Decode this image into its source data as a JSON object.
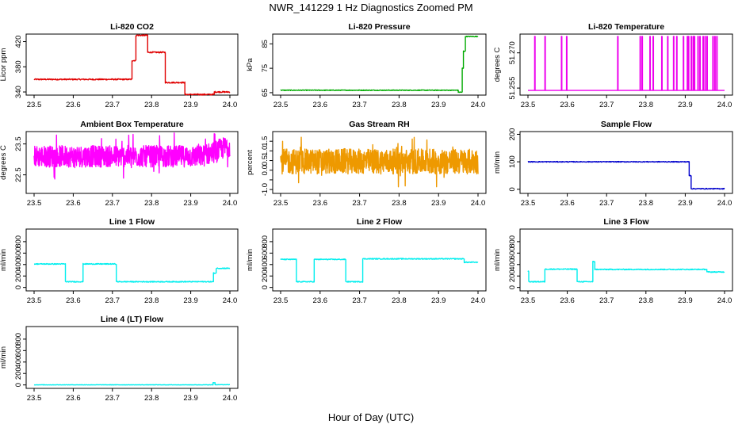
{
  "figure": {
    "title": "NWR_141229  1 Hz Diagnostics Zoomed PM",
    "xlabel": "Hour of Day (UTC)"
  },
  "chart_data": [
    {
      "id": "co2",
      "type": "line",
      "title": "Li-820 CO2",
      "ylabel": "Licor ppm",
      "color": "#e00000",
      "xlim": [
        23.5,
        24.0
      ],
      "xticks": [
        "23.5",
        "23.6",
        "23.7",
        "23.8",
        "23.9",
        "24.0"
      ],
      "ylim": [
        335,
        432
      ],
      "yticks": [
        340,
        380,
        420
      ],
      "noise": 1.0,
      "segments": [
        {
          "x0": 23.5,
          "x1": 23.75,
          "y": 360
        },
        {
          "x0": 23.75,
          "x1": 23.76,
          "y": 390
        },
        {
          "x0": 23.76,
          "x1": 23.79,
          "y": 430
        },
        {
          "x0": 23.79,
          "x1": 23.835,
          "y": 403
        },
        {
          "x0": 23.835,
          "x1": 23.885,
          "y": 355
        },
        {
          "x0": 23.885,
          "x1": 23.96,
          "y": 336
        },
        {
          "x0": 23.96,
          "x1": 23.97,
          "y": 340
        },
        {
          "x0": 23.97,
          "x1": 24.0,
          "y": 340
        }
      ]
    },
    {
      "id": "pressure",
      "type": "line",
      "title": "Li-820 Pressure",
      "ylabel": "kPa",
      "color": "#00aa00",
      "xlim": [
        23.5,
        24.0
      ],
      "xticks": [
        "23.5",
        "23.6",
        "23.7",
        "23.8",
        "23.9",
        "24.0"
      ],
      "ylim": [
        64,
        89
      ],
      "yticks": [
        65,
        75,
        85
      ],
      "noise": 0.15,
      "segments": [
        {
          "x0": 23.5,
          "x1": 23.95,
          "y": 66.0
        },
        {
          "x0": 23.95,
          "x1": 23.96,
          "y": 65.2
        },
        {
          "x0": 23.96,
          "x1": 23.963,
          "y": 75
        },
        {
          "x0": 23.963,
          "x1": 23.968,
          "y": 82
        },
        {
          "x0": 23.968,
          "x1": 24.0,
          "y": 88
        }
      ]
    },
    {
      "id": "temperature",
      "type": "line",
      "title": "Li-820 Temperature",
      "ylabel": "degrees C",
      "color": "#ee00ee",
      "xlim": [
        23.5,
        24.0
      ],
      "xticks": [
        "23.5",
        "23.6",
        "23.7",
        "23.8",
        "23.9",
        "24.0"
      ],
      "ylim": [
        51.252,
        51.278
      ],
      "yticks": [
        51.255,
        51.27
      ],
      "ytick_labels": [
        "51.255",
        "51.270"
      ],
      "baseline": 51.254,
      "spike_top": 51.277,
      "spikes": [
        23.517,
        23.543,
        23.585,
        23.598,
        23.728,
        23.785,
        23.79,
        23.81,
        23.818,
        23.84,
        23.855,
        23.87,
        23.878,
        23.895,
        23.905,
        23.908,
        23.915,
        23.92,
        23.923,
        23.932,
        23.937,
        23.945,
        23.95,
        23.955,
        23.97,
        23.975,
        23.98
      ]
    },
    {
      "id": "ambient",
      "type": "line",
      "title": "Ambient Box Temperature",
      "ylabel": "degrees C",
      "color": "#ff00ff",
      "xlim": [
        23.5,
        24.0
      ],
      "xticks": [
        "23.5",
        "23.6",
        "23.7",
        "23.8",
        "23.9",
        "24.0"
      ],
      "ylim": [
        21.9,
        23.9
      ],
      "yticks": [
        22.5,
        23.5
      ],
      "style": "noise",
      "center": 23.1,
      "amplitude": 0.35
    },
    {
      "id": "rh",
      "type": "line",
      "title": "Gas Stream RH",
      "ylabel": "percent",
      "color": "#ee9900",
      "xlim": [
        23.5,
        24.0
      ],
      "xticks": [
        "23.5",
        "23.6",
        "23.7",
        "23.8",
        "23.9",
        "24.0"
      ],
      "ylim": [
        -1.2,
        2.0
      ],
      "yticks": [
        -1.0,
        -0.5,
        0.0,
        0.5,
        1.0,
        1.5
      ],
      "ytick_labels": [
        "-1.0",
        "",
        "0.0",
        "0.5",
        "1.0",
        "1.5"
      ],
      "style": "noise",
      "center": 0.45,
      "amplitude": 0.65
    },
    {
      "id": "sample_flow",
      "type": "line",
      "title": "Sample Flow",
      "ylabel": "ml/min",
      "color": "#0000cc",
      "xlim": [
        23.5,
        24.0
      ],
      "xticks": [
        "23.5",
        "23.6",
        "23.7",
        "23.8",
        "23.9",
        "24.0"
      ],
      "ylim": [
        -15,
        210
      ],
      "yticks": [
        0,
        100,
        200
      ],
      "noise": 1.5,
      "segments": [
        {
          "x0": 23.5,
          "x1": 23.91,
          "y": 100
        },
        {
          "x0": 23.91,
          "x1": 23.915,
          "y": 50
        },
        {
          "x0": 23.915,
          "x1": 24.0,
          "y": 2
        }
      ]
    },
    {
      "id": "line1",
      "type": "line",
      "title": "Line 1 Flow",
      "ylabel": "ml/min",
      "color": "#00eeee",
      "xlim": [
        23.5,
        24.0
      ],
      "xticks": [
        "23.5",
        "23.6",
        "23.7",
        "23.8",
        "23.9",
        "24.0"
      ],
      "ylim": [
        -60,
        1020
      ],
      "yticks": [
        0,
        200,
        400,
        600,
        800
      ],
      "noise": 8,
      "segments": [
        {
          "x0": 23.5,
          "x1": 23.58,
          "y": 410
        },
        {
          "x0": 23.58,
          "x1": 23.625,
          "y": 100
        },
        {
          "x0": 23.625,
          "x1": 23.71,
          "y": 410
        },
        {
          "x0": 23.71,
          "x1": 23.958,
          "y": 100
        },
        {
          "x0": 23.958,
          "x1": 23.965,
          "y": 250
        },
        {
          "x0": 23.965,
          "x1": 24.0,
          "y": 335
        }
      ]
    },
    {
      "id": "line2",
      "type": "line",
      "title": "Line 2 Flow",
      "ylabel": "ml/min",
      "color": "#00eeee",
      "xlim": [
        23.5,
        24.0
      ],
      "xticks": [
        "23.5",
        "23.6",
        "23.7",
        "23.8",
        "23.9",
        "24.0"
      ],
      "ylim": [
        -60,
        1020
      ],
      "yticks": [
        0,
        200,
        400,
        600,
        800
      ],
      "noise": 8,
      "segments": [
        {
          "x0": 23.5,
          "x1": 23.54,
          "y": 490
        },
        {
          "x0": 23.54,
          "x1": 23.585,
          "y": 100
        },
        {
          "x0": 23.585,
          "x1": 23.665,
          "y": 490
        },
        {
          "x0": 23.665,
          "x1": 23.708,
          "y": 100
        },
        {
          "x0": 23.708,
          "x1": 23.965,
          "y": 500
        },
        {
          "x0": 23.965,
          "x1": 24.0,
          "y": 440
        }
      ]
    },
    {
      "id": "line3",
      "type": "line",
      "title": "Line 3 Flow",
      "ylabel": "ml/min",
      "color": "#00eeee",
      "xlim": [
        23.5,
        24.0
      ],
      "xticks": [
        "23.5",
        "23.6",
        "23.7",
        "23.8",
        "23.9",
        "24.0"
      ],
      "ylim": [
        -60,
        1020
      ],
      "yticks": [
        0,
        200,
        400,
        600,
        800
      ],
      "noise": 8,
      "segments": [
        {
          "x0": 23.5,
          "x1": 23.502,
          "y": 280
        },
        {
          "x0": 23.502,
          "x1": 23.543,
          "y": 100
        },
        {
          "x0": 23.543,
          "x1": 23.625,
          "y": 320
        },
        {
          "x0": 23.625,
          "x1": 23.665,
          "y": 100
        },
        {
          "x0": 23.665,
          "x1": 23.67,
          "y": 450
        },
        {
          "x0": 23.67,
          "x1": 23.955,
          "y": 315
        },
        {
          "x0": 23.955,
          "x1": 24.0,
          "y": 270
        }
      ]
    },
    {
      "id": "line4",
      "type": "line",
      "title": "Line 4 (LT) Flow",
      "ylabel": "ml/min",
      "color": "#00eeee",
      "xlim": [
        23.5,
        24.0
      ],
      "xticks": [
        "23.5",
        "23.6",
        "23.7",
        "23.8",
        "23.9",
        "24.0"
      ],
      "ylim": [
        -60,
        1020
      ],
      "yticks": [
        0,
        200,
        400,
        600,
        800
      ],
      "noise": 3,
      "segments": [
        {
          "x0": 23.5,
          "x1": 23.957,
          "y": 2
        },
        {
          "x0": 23.957,
          "x1": 23.962,
          "y": 40
        },
        {
          "x0": 23.962,
          "x1": 24.0,
          "y": 4
        }
      ]
    }
  ]
}
